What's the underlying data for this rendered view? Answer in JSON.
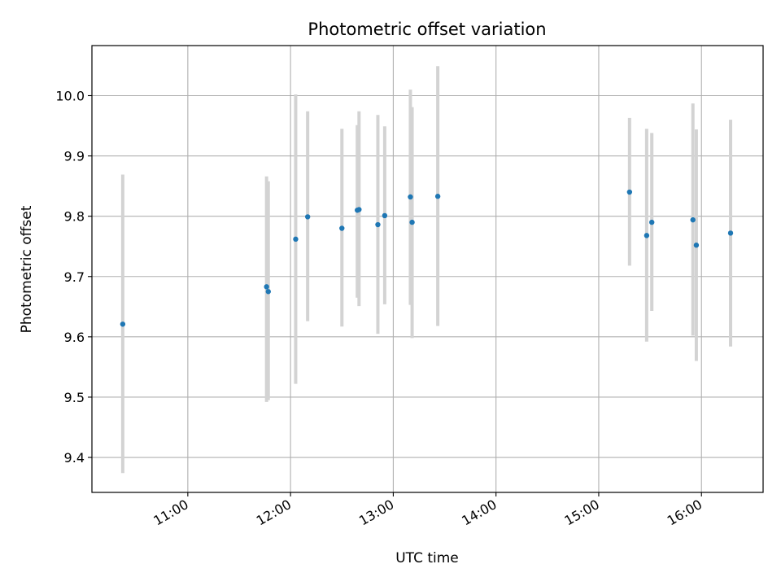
{
  "chart_data": {
    "type": "scatter",
    "title": "Photometric offset variation",
    "xlabel": "UTC time",
    "ylabel": "Photometric offset",
    "xlim": [
      "10:04",
      "16:36"
    ],
    "ylim": [
      9.342,
      10.083
    ],
    "x_ticks": [
      "11:00",
      "12:00",
      "13:00",
      "14:00",
      "15:00",
      "16:00"
    ],
    "y_ticks": [
      9.4,
      9.5,
      9.6,
      9.7,
      9.8,
      9.9,
      10.0
    ],
    "y_tick_labels": [
      "9.4",
      "9.5",
      "9.6",
      "9.7",
      "9.8",
      "9.9",
      "10.0"
    ],
    "grid": true,
    "colors": {
      "marker": "#1f77b4",
      "errorbar": "#d3d3d3",
      "grid": "#b0b0b0"
    },
    "series": [
      {
        "points": [
          {
            "x": "10:22",
            "y": 9.621,
            "ylow": 9.374,
            "yhigh": 9.869
          },
          {
            "x": "11:46",
            "y": 9.683,
            "ylow": 9.492,
            "yhigh": 9.866
          },
          {
            "x": "11:47",
            "y": 9.675,
            "ylow": 9.495,
            "yhigh": 9.858
          },
          {
            "x": "12:03",
            "y": 9.762,
            "ylow": 9.522,
            "yhigh": 10.002
          },
          {
            "x": "12:10",
            "y": 9.799,
            "ylow": 9.626,
            "yhigh": 9.974
          },
          {
            "x": "12:30",
            "y": 9.78,
            "ylow": 9.617,
            "yhigh": 9.945
          },
          {
            "x": "12:39",
            "y": 9.81,
            "ylow": 9.665,
            "yhigh": 9.951
          },
          {
            "x": "12:40",
            "y": 9.811,
            "ylow": 9.651,
            "yhigh": 9.974
          },
          {
            "x": "12:51",
            "y": 9.786,
            "ylow": 9.605,
            "yhigh": 9.968
          },
          {
            "x": "12:55",
            "y": 9.801,
            "ylow": 9.654,
            "yhigh": 9.949
          },
          {
            "x": "13:10",
            "y": 9.832,
            "ylow": 9.653,
            "yhigh": 10.01
          },
          {
            "x": "13:11",
            "y": 9.79,
            "ylow": 9.598,
            "yhigh": 9.981
          },
          {
            "x": "13:26",
            "y": 9.833,
            "ylow": 9.618,
            "yhigh": 10.049
          },
          {
            "x": "15:18",
            "y": 9.84,
            "ylow": 9.718,
            "yhigh": 9.963
          },
          {
            "x": "15:28",
            "y": 9.768,
            "ylow": 9.592,
            "yhigh": 9.945
          },
          {
            "x": "15:31",
            "y": 9.79,
            "ylow": 9.643,
            "yhigh": 9.938
          },
          {
            "x": "15:55",
            "y": 9.794,
            "ylow": 9.602,
            "yhigh": 9.987
          },
          {
            "x": "15:57",
            "y": 9.752,
            "ylow": 9.56,
            "yhigh": 9.944
          },
          {
            "x": "16:17",
            "y": 9.772,
            "ylow": 9.584,
            "yhigh": 9.96
          }
        ]
      }
    ]
  }
}
